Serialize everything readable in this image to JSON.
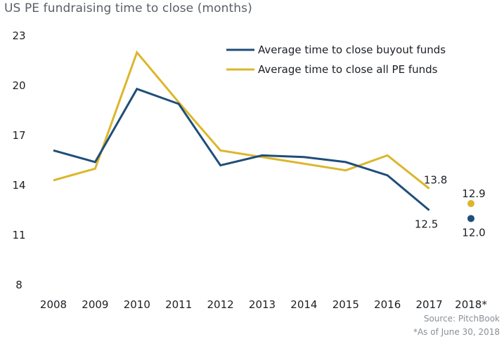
{
  "chart_data": {
    "type": "line",
    "title": "US PE fundraising time to close (months)",
    "categories": [
      "2008",
      "2009",
      "2010",
      "2011",
      "2012",
      "2013",
      "2014",
      "2015",
      "2016",
      "2017",
      "2018*"
    ],
    "series": [
      {
        "name": "Average time to close buyout funds",
        "color": "#1f4e79",
        "values": [
          16.1,
          15.4,
          19.8,
          18.9,
          15.2,
          15.8,
          15.7,
          15.4,
          14.6,
          12.5,
          null
        ],
        "point": {
          "category": "2018*",
          "value": 12.0
        },
        "labels": [
          {
            "category": "2017",
            "text": "12.5"
          },
          {
            "category": "2018*",
            "text": "12.0"
          }
        ]
      },
      {
        "name": "Average time to close all PE funds",
        "color": "#dcb62b",
        "values": [
          14.3,
          15.0,
          22.0,
          19.0,
          16.1,
          15.7,
          15.3,
          14.9,
          15.8,
          13.8,
          null
        ],
        "point": {
          "category": "2018*",
          "value": 12.9
        },
        "labels": [
          {
            "category": "2017",
            "text": "13.8"
          },
          {
            "category": "2018*",
            "text": "12.9"
          }
        ]
      }
    ],
    "yticks": [
      "23",
      "20",
      "17",
      "14",
      "11",
      "8"
    ],
    "ylim": [
      8,
      23
    ],
    "xlabel": "",
    "ylabel": "",
    "grid": false,
    "legend": "top-right"
  },
  "footer": {
    "source": "Source: PitchBook",
    "footnote": "*As of June 30, 2018"
  }
}
